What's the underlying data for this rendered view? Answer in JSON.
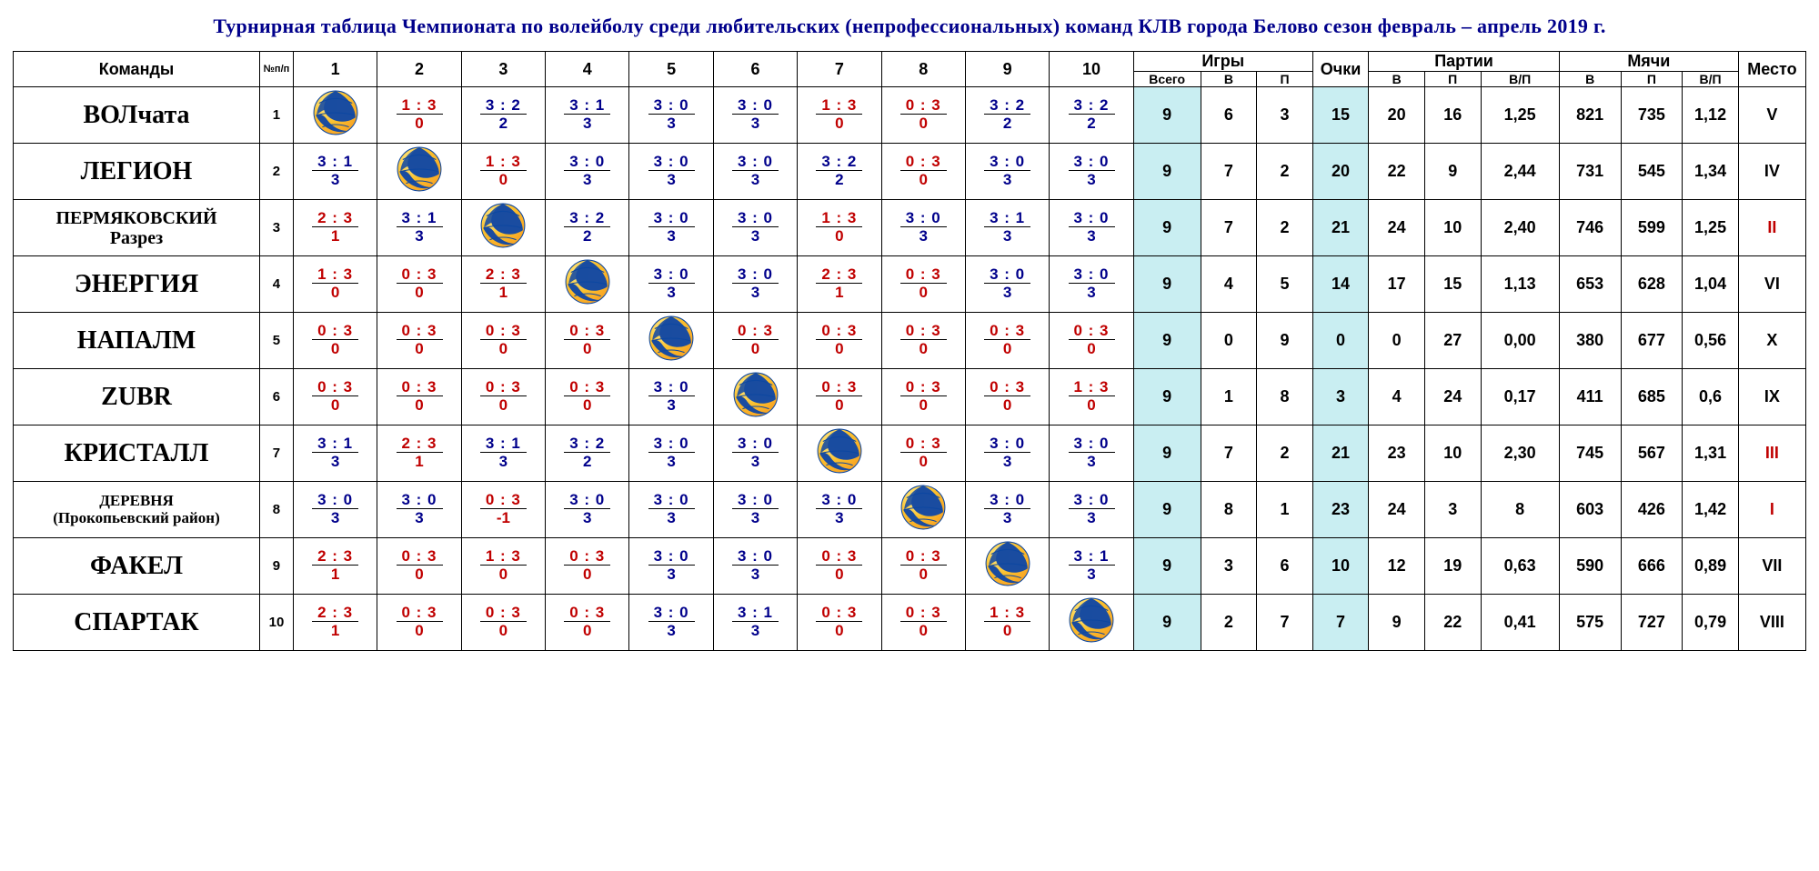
{
  "title": "Турнирная таблица Чемпионата по волейболу среди любительских (непрофессиональных) команд КЛВ города Белово сезон февраль – апрель 2019 г.",
  "headers": {
    "teams": "Команды",
    "idx": "№п/п",
    "games": "Игры",
    "games_all": "Всего",
    "games_w": "В",
    "games_l": "П",
    "points": "Очки",
    "sets": "Партии",
    "sets_w": "В",
    "sets_l": "П",
    "sets_r": "В/П",
    "balls": "Мячи",
    "balls_w": "В",
    "balls_l": "П",
    "balls_r": "В/П",
    "place": "Место",
    "opp": [
      "1",
      "2",
      "3",
      "4",
      "5",
      "6",
      "7",
      "8",
      "9",
      "10"
    ]
  },
  "teams": [
    {
      "name": "ВОЛчата",
      "nameClass": "",
      "idx": "1",
      "cells": [
        null,
        {
          "score": "1 : 3",
          "pts": "0",
          "win": false
        },
        {
          "score": "3 : 2",
          "pts": "2",
          "win": true
        },
        {
          "score": "3 : 1",
          "pts": "3",
          "win": true
        },
        {
          "score": "3 : 0",
          "pts": "3",
          "win": true
        },
        {
          "score": "3 : 0",
          "pts": "3",
          "win": true
        },
        {
          "score": "1 : 3",
          "pts": "0",
          "win": false
        },
        {
          "score": "0 : 3",
          "pts": "0",
          "win": false
        },
        {
          "score": "3 : 2",
          "pts": "2",
          "win": true
        },
        {
          "score": "3 : 2",
          "pts": "2",
          "win": true
        }
      ],
      "g_all": "9",
      "g_w": "6",
      "g_l": "3",
      "pts": "15",
      "s_w": "20",
      "s_l": "16",
      "s_r": "1,25",
      "b_w": "821",
      "b_l": "735",
      "b_r": "1,12",
      "place": "V",
      "placeRed": false
    },
    {
      "name": "ЛЕГИОН",
      "nameClass": "",
      "idx": "2",
      "cells": [
        {
          "score": "3 : 1",
          "pts": "3",
          "win": true
        },
        null,
        {
          "score": "1 : 3",
          "pts": "0",
          "win": false
        },
        {
          "score": "3 : 0",
          "pts": "3",
          "win": true
        },
        {
          "score": "3 : 0",
          "pts": "3",
          "win": true
        },
        {
          "score": "3 : 0",
          "pts": "3",
          "win": true
        },
        {
          "score": "3 : 2",
          "pts": "2",
          "win": true
        },
        {
          "score": "0 : 3",
          "pts": "0",
          "win": false
        },
        {
          "score": "3 : 0",
          "pts": "3",
          "win": true
        },
        {
          "score": "3 : 0",
          "pts": "3",
          "win": true
        }
      ],
      "g_all": "9",
      "g_w": "7",
      "g_l": "2",
      "pts": "20",
      "s_w": "22",
      "s_l": "9",
      "s_r": "2,44",
      "b_w": "731",
      "b_l": "545",
      "b_r": "1,34",
      "place": "IV",
      "placeRed": false
    },
    {
      "name": "ПЕРМЯКОВСКИЙ<br>Разрез",
      "nameClass": "small1",
      "idx": "3",
      "cells": [
        {
          "score": "2 : 3",
          "pts": "1",
          "win": false
        },
        {
          "score": "3 : 1",
          "pts": "3",
          "win": true
        },
        null,
        {
          "score": "3 : 2",
          "pts": "2",
          "win": true
        },
        {
          "score": "3 : 0",
          "pts": "3",
          "win": true
        },
        {
          "score": "3 : 0",
          "pts": "3",
          "win": true
        },
        {
          "score": "1 : 3",
          "pts": "0",
          "win": false
        },
        {
          "score": "3 : 0",
          "pts": "3",
          "win": true
        },
        {
          "score": "3 : 1",
          "pts": "3",
          "win": true
        },
        {
          "score": "3 : 0",
          "pts": "3",
          "win": true
        }
      ],
      "g_all": "9",
      "g_w": "7",
      "g_l": "2",
      "pts": "21",
      "s_w": "24",
      "s_l": "10",
      "s_r": "2,40",
      "b_w": "746",
      "b_l": "599",
      "b_r": "1,25",
      "place": "II",
      "placeRed": true
    },
    {
      "name": "ЭНЕРГИЯ",
      "nameClass": "",
      "idx": "4",
      "cells": [
        {
          "score": "1 : 3",
          "pts": "0",
          "win": false
        },
        {
          "score": "0 : 3",
          "pts": "0",
          "win": false
        },
        {
          "score": "2 : 3",
          "pts": "1",
          "win": false
        },
        null,
        {
          "score": "3 : 0",
          "pts": "3",
          "win": true
        },
        {
          "score": "3 : 0",
          "pts": "3",
          "win": true
        },
        {
          "score": "2 : 3",
          "pts": "1",
          "win": false
        },
        {
          "score": "0 : 3",
          "pts": "0",
          "win": false
        },
        {
          "score": "3 : 0",
          "pts": "3",
          "win": true
        },
        {
          "score": "3 : 0",
          "pts": "3",
          "win": true
        }
      ],
      "g_all": "9",
      "g_w": "4",
      "g_l": "5",
      "pts": "14",
      "s_w": "17",
      "s_l": "15",
      "s_r": "1,13",
      "b_w": "653",
      "b_l": "628",
      "b_r": "1,04",
      "place": "VI",
      "placeRed": false
    },
    {
      "name": "НАПАЛМ",
      "nameClass": "",
      "idx": "5",
      "cells": [
        {
          "score": "0 : 3",
          "pts": "0",
          "win": false
        },
        {
          "score": "0 : 3",
          "pts": "0",
          "win": false
        },
        {
          "score": "0 : 3",
          "pts": "0",
          "win": false
        },
        {
          "score": "0 : 3",
          "pts": "0",
          "win": false
        },
        null,
        {
          "score": "0 : 3",
          "pts": "0",
          "win": false
        },
        {
          "score": "0 : 3",
          "pts": "0",
          "win": false
        },
        {
          "score": "0 : 3",
          "pts": "0",
          "win": false
        },
        {
          "score": "0 : 3",
          "pts": "0",
          "win": false
        },
        {
          "score": "0 : 3",
          "pts": "0",
          "win": false
        }
      ],
      "g_all": "9",
      "g_w": "0",
      "g_l": "9",
      "pts": "0",
      "s_w": "0",
      "s_l": "27",
      "s_r": "0,00",
      "b_w": "380",
      "b_l": "677",
      "b_r": "0,56",
      "place": "X",
      "placeRed": false
    },
    {
      "name": "ZUBR",
      "nameClass": "",
      "idx": "6",
      "cells": [
        {
          "score": "0 : 3",
          "pts": "0",
          "win": false
        },
        {
          "score": "0 : 3",
          "pts": "0",
          "win": false
        },
        {
          "score": "0 : 3",
          "pts": "0",
          "win": false
        },
        {
          "score": "0 : 3",
          "pts": "0",
          "win": false
        },
        {
          "score": "3 : 0",
          "pts": "3",
          "win": true
        },
        null,
        {
          "score": "0 : 3",
          "pts": "0",
          "win": false
        },
        {
          "score": "0 : 3",
          "pts": "0",
          "win": false
        },
        {
          "score": "0 : 3",
          "pts": "0",
          "win": false
        },
        {
          "score": "1 : 3",
          "pts": "0",
          "win": false
        }
      ],
      "g_all": "9",
      "g_w": "1",
      "g_l": "8",
      "pts": "3",
      "s_w": "4",
      "s_l": "24",
      "s_r": "0,17",
      "b_w": "411",
      "b_l": "685",
      "b_r": "0,6",
      "place": "IX",
      "placeRed": false
    },
    {
      "name": "КРИСТАЛЛ",
      "nameClass": "",
      "idx": "7",
      "cells": [
        {
          "score": "3 : 1",
          "pts": "3",
          "win": true
        },
        {
          "score": "2 : 3",
          "pts": "1",
          "win": false
        },
        {
          "score": "3 : 1",
          "pts": "3",
          "win": true
        },
        {
          "score": "3 : 2",
          "pts": "2",
          "win": true
        },
        {
          "score": "3 : 0",
          "pts": "3",
          "win": true
        },
        {
          "score": "3 : 0",
          "pts": "3",
          "win": true
        },
        null,
        {
          "score": "0 : 3",
          "pts": "0",
          "win": false
        },
        {
          "score": "3 : 0",
          "pts": "3",
          "win": true
        },
        {
          "score": "3 : 0",
          "pts": "3",
          "win": true
        }
      ],
      "g_all": "9",
      "g_w": "7",
      "g_l": "2",
      "pts": "21",
      "s_w": "23",
      "s_l": "10",
      "s_r": "2,30",
      "b_w": "745",
      "b_l": "567",
      "b_r": "1,31",
      "place": "III",
      "placeRed": true
    },
    {
      "name": "ДЕРЕВНЯ<br>(Прокопьевский район)",
      "nameClass": "small2",
      "idx": "8",
      "cells": [
        {
          "score": "3 : 0",
          "pts": "3",
          "win": true
        },
        {
          "score": "3 : 0",
          "pts": "3",
          "win": true
        },
        {
          "score": "0 : 3",
          "pts": "-1",
          "win": false,
          "neg": true
        },
        {
          "score": "3 : 0",
          "pts": "3",
          "win": true
        },
        {
          "score": "3 : 0",
          "pts": "3",
          "win": true
        },
        {
          "score": "3 : 0",
          "pts": "3",
          "win": true
        },
        {
          "score": "3 : 0",
          "pts": "3",
          "win": true
        },
        null,
        {
          "score": "3 : 0",
          "pts": "3",
          "win": true
        },
        {
          "score": "3 : 0",
          "pts": "3",
          "win": true
        }
      ],
      "g_all": "9",
      "g_w": "8",
      "g_l": "1",
      "pts": "23",
      "s_w": "24",
      "s_l": "3",
      "s_r": "8",
      "b_w": "603",
      "b_l": "426",
      "b_r": "1,42",
      "place": "I",
      "placeRed": true
    },
    {
      "name": "ФАКЕЛ",
      "nameClass": "",
      "idx": "9",
      "cells": [
        {
          "score": "2 : 3",
          "pts": "1",
          "win": false
        },
        {
          "score": "0 : 3",
          "pts": "0",
          "win": false
        },
        {
          "score": "1 : 3",
          "pts": "0",
          "win": false
        },
        {
          "score": "0 : 3",
          "pts": "0",
          "win": false
        },
        {
          "score": "3 : 0",
          "pts": "3",
          "win": true
        },
        {
          "score": "3 : 0",
          "pts": "3",
          "win": true
        },
        {
          "score": "0 : 3",
          "pts": "0",
          "win": false
        },
        {
          "score": "0 : 3",
          "pts": "0",
          "win": false
        },
        null,
        {
          "score": "3 : 1",
          "pts": "3",
          "win": true
        }
      ],
      "g_all": "9",
      "g_w": "3",
      "g_l": "6",
      "pts": "10",
      "s_w": "12",
      "s_l": "19",
      "s_r": "0,63",
      "b_w": "590",
      "b_l": "666",
      "b_r": "0,89",
      "place": "VII",
      "placeRed": false
    },
    {
      "name": "СПАРТАК",
      "nameClass": "",
      "idx": "10",
      "cells": [
        {
          "score": "2 : 3",
          "pts": "1",
          "win": false
        },
        {
          "score": "0 : 3",
          "pts": "0",
          "win": false
        },
        {
          "score": "0 : 3",
          "pts": "0",
          "win": false
        },
        {
          "score": "0 : 3",
          "pts": "0",
          "win": false
        },
        {
          "score": "3 : 0",
          "pts": "3",
          "win": true
        },
        {
          "score": "3 : 1",
          "pts": "3",
          "win": true
        },
        {
          "score": "0 : 3",
          "pts": "0",
          "win": false
        },
        {
          "score": "0 : 3",
          "pts": "0",
          "win": false
        },
        {
          "score": "1 : 3",
          "pts": "0",
          "win": false
        },
        null
      ],
      "g_all": "9",
      "g_w": "2",
      "g_l": "7",
      "pts": "7",
      "s_w": "9",
      "s_l": "22",
      "s_r": "0,41",
      "b_w": "575",
      "b_l": "727",
      "b_r": "0,79",
      "place": "VIII",
      "placeRed": false
    }
  ],
  "style": {
    "title_color": "#00008b",
    "win_color": "#00008b",
    "loss_color": "#c00000",
    "highlight_bg": "#c9eef2",
    "border_color": "#000000"
  }
}
